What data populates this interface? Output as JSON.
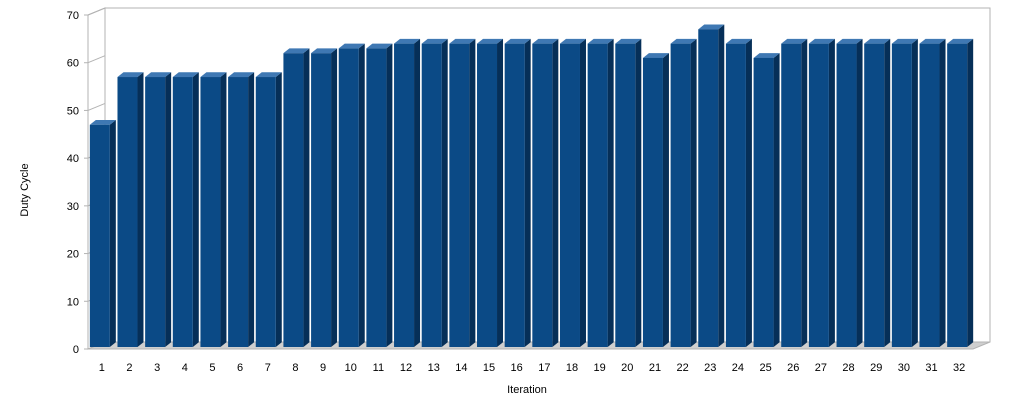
{
  "chart_data": {
    "type": "bar",
    "title": "",
    "xlabel": "Iteration",
    "ylabel": "Duty Cycle",
    "ylim": [
      0,
      70
    ],
    "yticks": [
      0,
      10,
      20,
      30,
      40,
      50,
      60,
      70
    ],
    "grid": true,
    "bar_style": "3d",
    "categories": [
      "1",
      "2",
      "3",
      "4",
      "5",
      "6",
      "7",
      "8",
      "9",
      "10",
      "11",
      "12",
      "13",
      "14",
      "15",
      "16",
      "17",
      "18",
      "19",
      "20",
      "21",
      "22",
      "23",
      "24",
      "25",
      "26",
      "27",
      "28",
      "29",
      "30",
      "31",
      "32"
    ],
    "values": [
      47,
      57,
      57,
      57,
      57,
      57,
      57,
      62,
      62,
      63,
      63,
      64,
      64,
      64,
      64,
      64,
      64,
      64,
      64,
      64,
      61,
      64,
      67,
      64,
      61,
      64,
      64,
      64,
      64,
      64,
      64,
      64
    ],
    "colors": {
      "bar_front": "#0b4a86",
      "bar_side": "#062f58",
      "bar_top": "#3f78b3",
      "grid": "#b3b3b3",
      "floor": "#cfcfcf"
    }
  }
}
